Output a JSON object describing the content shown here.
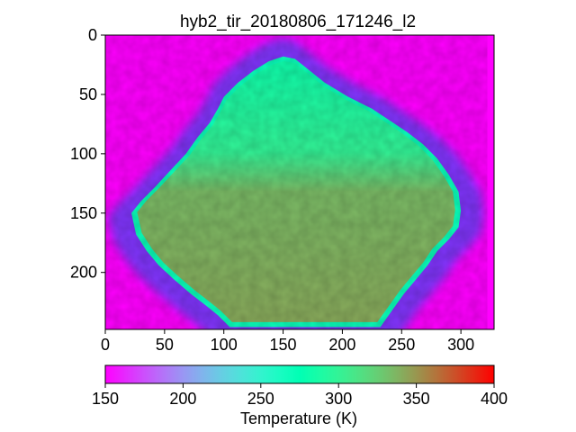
{
  "chart_data": {
    "type": "heatmap",
    "title": "hyb2_tir_20180806_171246_l2",
    "xlabel": "",
    "ylabel": "",
    "image_width": 328,
    "image_height": 248,
    "xlim": [
      0,
      328
    ],
    "ylim": [
      248,
      0
    ],
    "xticks": [
      0,
      50,
      100,
      150,
      200,
      250,
      300
    ],
    "yticks": [
      0,
      50,
      100,
      150,
      200
    ],
    "xtick_labels": [
      "0",
      "50",
      "100",
      "150",
      "200",
      "250",
      "300"
    ],
    "ytick_labels": [
      "0",
      "50",
      "100",
      "150",
      "200"
    ],
    "colormap": "rainbow",
    "colorbar": {
      "label": "Temperature (K)",
      "vmin": 150,
      "vmax": 400,
      "ticks": [
        150,
        200,
        250,
        300,
        350,
        400
      ],
      "tick_labels": [
        "150",
        "200",
        "250",
        "300",
        "350",
        "400"
      ],
      "orientation": "horizontal",
      "placement": "bottom"
    },
    "background_temperature_K": 150,
    "asteroid_outline_image_coords": [
      [
        150,
        18
      ],
      [
        160,
        20
      ],
      [
        170,
        28
      ],
      [
        185,
        40
      ],
      [
        205,
        52
      ],
      [
        225,
        62
      ],
      [
        240,
        72
      ],
      [
        255,
        82
      ],
      [
        268,
        92
      ],
      [
        280,
        104
      ],
      [
        290,
        118
      ],
      [
        298,
        132
      ],
      [
        300,
        148
      ],
      [
        298,
        162
      ],
      [
        290,
        172
      ],
      [
        280,
        182
      ],
      [
        272,
        194
      ],
      [
        262,
        206
      ],
      [
        252,
        218
      ],
      [
        242,
        232
      ],
      [
        232,
        246
      ],
      [
        105,
        246
      ],
      [
        95,
        236
      ],
      [
        85,
        228
      ],
      [
        72,
        218
      ],
      [
        58,
        206
      ],
      [
        45,
        194
      ],
      [
        35,
        182
      ],
      [
        26,
        168
      ],
      [
        22,
        150
      ],
      [
        30,
        140
      ],
      [
        42,
        128
      ],
      [
        55,
        114
      ],
      [
        68,
        100
      ],
      [
        78,
        86
      ],
      [
        88,
        74
      ],
      [
        95,
        62
      ],
      [
        100,
        52
      ],
      [
        112,
        40
      ],
      [
        125,
        30
      ],
      [
        138,
        22
      ]
    ],
    "temperature_summary_K": {
      "upper_region": 290,
      "lower_region": 340,
      "limb": 270
    }
  }
}
